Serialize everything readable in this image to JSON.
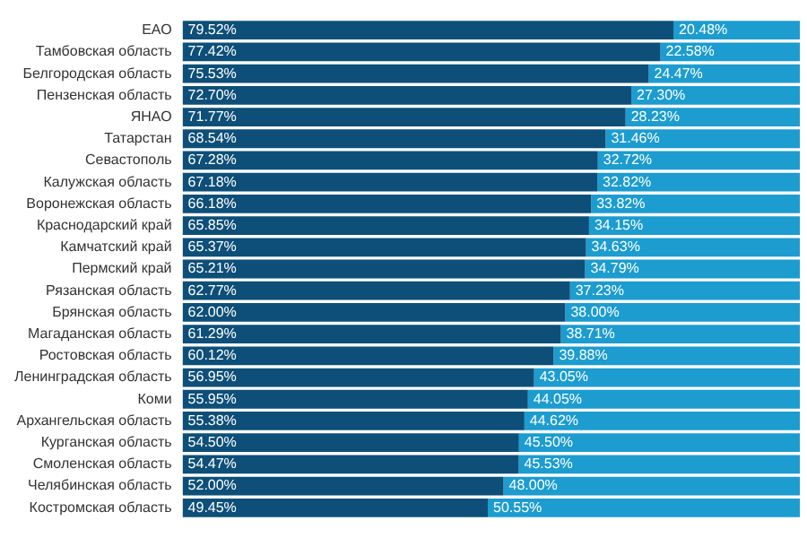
{
  "chart_data": {
    "type": "bar",
    "orientation": "horizontal",
    "stacked": true,
    "legend": false,
    "grid": false,
    "tick_labels": "y",
    "categories": [
      "ЕАО",
      "Тамбовская область",
      "Белгородская область",
      "Пензенская область",
      "ЯНАО",
      "Татарстан",
      "Севастополь",
      "Калужская область",
      "Воронежская область",
      "Краснодарский край",
      "Камчатский край",
      "Пермский край",
      "Рязанская область",
      "Брянская область",
      "Магаданская область",
      "Ростовская область",
      "Ленинградская область",
      "Коми",
      "Архангельская область",
      "Курганская область",
      "Смоленская область",
      "Челябинская область",
      "Костромская область"
    ],
    "series": [
      {
        "color": "#0d4f78",
        "values": [
          79.52,
          77.42,
          75.53,
          72.7,
          71.77,
          68.54,
          67.28,
          67.18,
          66.18,
          65.85,
          65.37,
          65.21,
          62.77,
          62.0,
          61.29,
          60.12,
          56.95,
          55.95,
          55.38,
          54.5,
          54.47,
          52.0,
          49.45
        ],
        "value_labels": [
          "79.52%",
          "77.42%",
          "75.53%",
          "72.70%",
          "71.77%",
          "68.54%",
          "67.28%",
          "67.18%",
          "66.18%",
          "65.85%",
          "65.37%",
          "65.21%",
          "62.77%",
          "62.00%",
          "61.29%",
          "60.12%",
          "56.95%",
          "55.95%",
          "55.38%",
          "54.50%",
          "54.47%",
          "52.00%",
          "49.45%"
        ]
      },
      {
        "color": "#1c9ccf",
        "values": [
          20.48,
          22.58,
          24.47,
          27.3,
          28.23,
          31.46,
          32.72,
          32.82,
          33.82,
          34.15,
          34.63,
          34.79,
          37.23,
          38.0,
          38.71,
          39.88,
          43.05,
          44.05,
          44.62,
          45.5,
          45.53,
          48.0,
          50.55
        ],
        "value_labels": [
          "20.48%",
          "22.58%",
          "24.47%",
          "27.30%",
          "28.23%",
          "31.46%",
          "32.72%",
          "32.82%",
          "33.82%",
          "34.15%",
          "34.63%",
          "34.79%",
          "37.23%",
          "38.00%",
          "38.71%",
          "39.88%",
          "43.05%",
          "44.05%",
          "44.62%",
          "45.50%",
          "45.53%",
          "48.00%",
          "50.55%"
        ]
      }
    ]
  }
}
